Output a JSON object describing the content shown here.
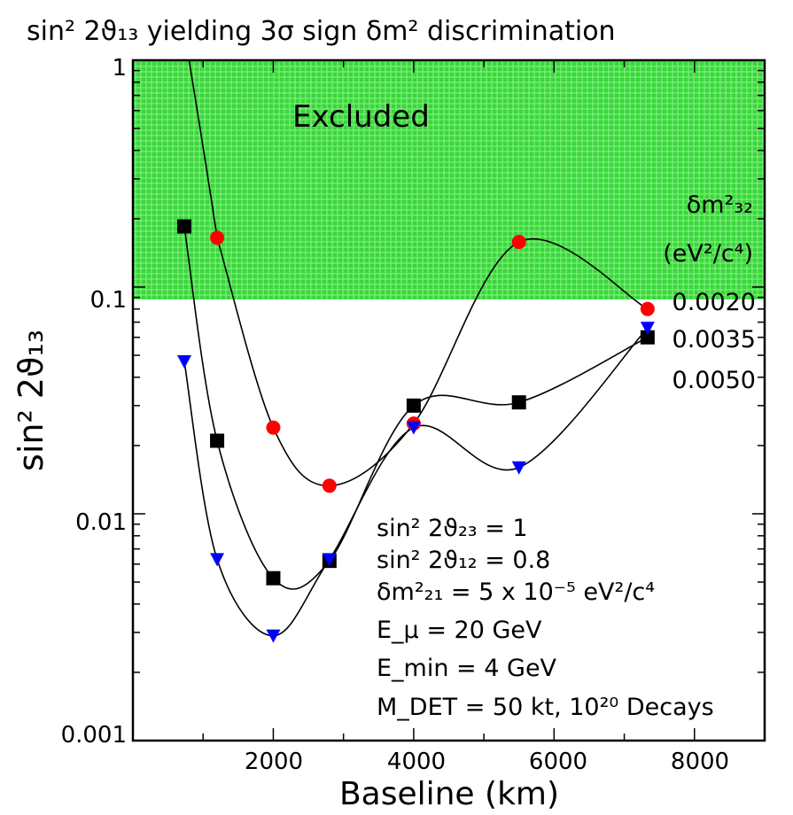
{
  "chart_data": {
    "type": "scatter",
    "title": "sin² 2ϑ₁₃ yielding 3σ sign δm² discrimination",
    "xlabel": "Baseline  (km)",
    "ylabel": "sin² 2ϑ₁₃",
    "xlim": [
      0,
      9000
    ],
    "ylim": [
      0.001,
      1
    ],
    "yscale": "log",
    "x_ticks": [
      "2000",
      "4000",
      "6000",
      "8000"
    ],
    "y_ticks": [
      "0.001",
      "0.01",
      "0.1",
      "1"
    ],
    "excluded_region": {
      "label": "Excluded",
      "y_from": 0.1,
      "y_to": 1,
      "color": "#33dd33"
    },
    "legend_title_line1": "δm²₃₂",
    "legend_title_line2": "(eV²/c⁴)",
    "series": [
      {
        "name": "0.0020",
        "marker": "circle",
        "color": "#ff0000",
        "x": [
          1200,
          2000,
          2800,
          4000,
          5500,
          7332
        ],
        "y": [
          0.165,
          0.024,
          0.0133,
          0.025,
          0.158,
          0.08
        ]
      },
      {
        "name": "0.0035",
        "marker": "square",
        "color": "#000000",
        "x": [
          732,
          1200,
          2000,
          2800,
          4000,
          5500,
          7332
        ],
        "y": [
          0.185,
          0.021,
          0.0052,
          0.0062,
          0.03,
          0.031,
          0.06
        ]
      },
      {
        "name": "0.0050",
        "marker": "triangle-down",
        "color": "#0000ff",
        "x": [
          732,
          1200,
          2000,
          2800,
          4000,
          5500,
          7332
        ],
        "y": [
          0.047,
          0.0063,
          0.0029,
          0.0063,
          0.024,
          0.016,
          0.066
        ]
      }
    ],
    "annotations": [
      "sin² 2ϑ₂₃ = 1",
      "sin² 2ϑ₁₂ = 0.8",
      "δm²₂₁ = 5 x 10⁻⁵ eV²/c⁴",
      "E_μ = 20 GeV",
      "E_min = 4 GeV",
      "M_DET = 50 kt, 10²⁰ Decays"
    ]
  },
  "colors": {
    "excluded": "#33dd33",
    "circle": "#ff0000",
    "square": "#000000",
    "triangle": "#0000ff"
  }
}
